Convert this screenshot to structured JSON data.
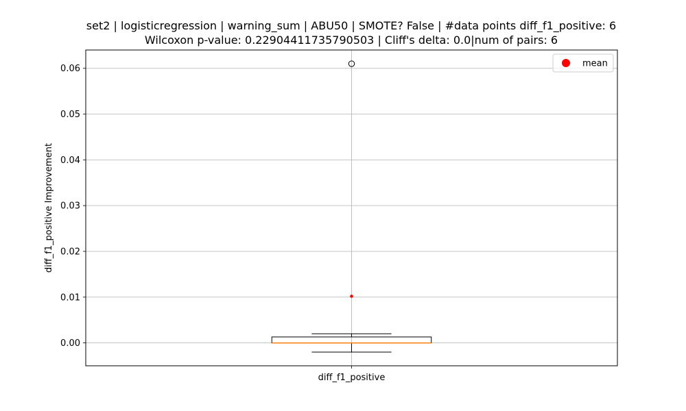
{
  "chart_data": {
    "type": "box",
    "title_lines": [
      "set2 | logisticregression | warning_sum | ABU50 | SMOTE? False | #data points diff_f1_positive: 6",
      "Wilcoxon p-value: 0.22904411735790503 | Cliff's delta: 0.0|num of pairs: 6"
    ],
    "xlabel": "",
    "ylabel": "diff_f1_positive Improvement",
    "categories": [
      "diff_f1_positive"
    ],
    "ylim": [
      -0.005,
      0.064
    ],
    "yticks": [
      0.0,
      0.01,
      0.02,
      0.03,
      0.04,
      0.05,
      0.06
    ],
    "ytick_labels": [
      "0.00",
      "0.01",
      "0.02",
      "0.03",
      "0.04",
      "0.05",
      "0.06"
    ],
    "grid": true,
    "legend": {
      "placement": "top-right",
      "entries": [
        {
          "label": "mean",
          "color": "#ff0000",
          "marker": "circle"
        }
      ]
    },
    "boxes": [
      {
        "category": "diff_f1_positive",
        "whisker_low": -0.002,
        "q1": 0.0,
        "median": 0.0,
        "q3": 0.0013,
        "whisker_high": 0.002,
        "outliers": [
          0.061
        ],
        "mean": 0.0102
      }
    ],
    "colors": {
      "box": "#000000",
      "median": "#ff7f0e",
      "mean": "#ff0000",
      "grid": "#b0b0b0"
    }
  }
}
